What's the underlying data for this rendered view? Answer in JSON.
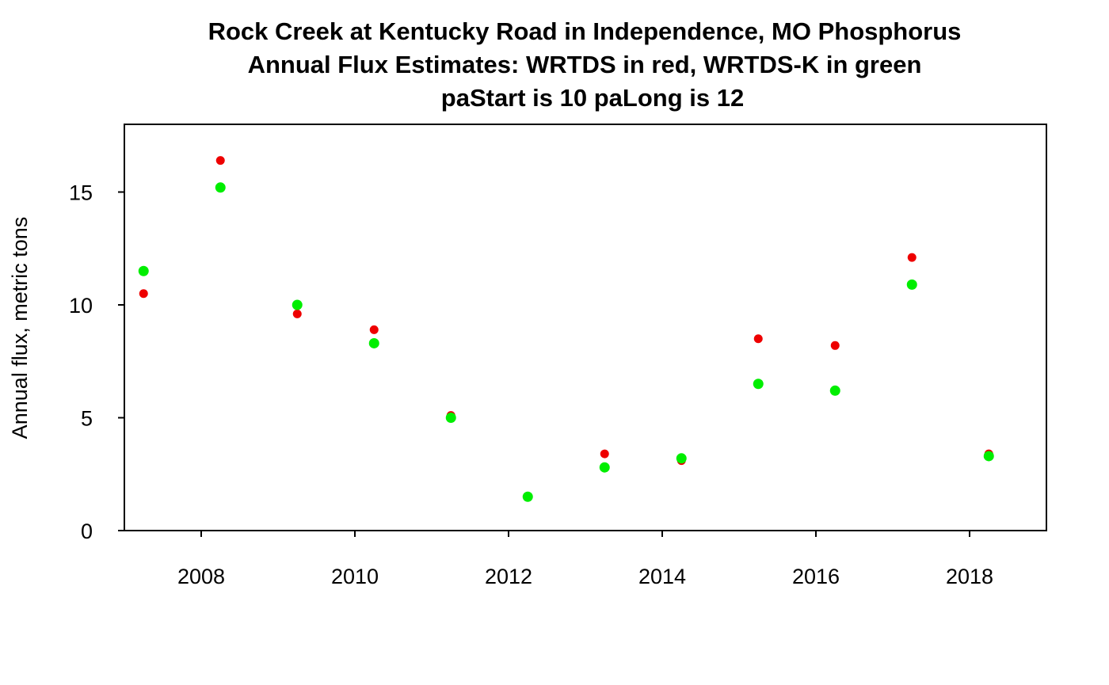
{
  "chart_data": {
    "type": "scatter",
    "title_lines": [
      "Rock Creek at Kentucky Road in Independence, MO  Phosphorus",
      "Annual Flux Estimates: WRTDS in red, WRTDS-K in green",
      "paStart is 10  paLong is 12"
    ],
    "xlabel": "",
    "ylabel": "Annual flux, metric tons",
    "xlim": [
      2007.0,
      2019.0
    ],
    "ylim": [
      0,
      18
    ],
    "x_ticks": [
      2008,
      2010,
      2012,
      2014,
      2016,
      2018
    ],
    "y_ticks": [
      0,
      5,
      10,
      15
    ],
    "grid": false,
    "series": [
      {
        "color": "#ee0000",
        "x": [
          2007.25,
          2008.25,
          2009.25,
          2010.25,
          2011.25,
          2012.25,
          2013.25,
          2014.25,
          2015.25,
          2016.25,
          2017.25,
          2018.25
        ],
        "y": [
          10.5,
          16.4,
          9.6,
          8.9,
          5.1,
          1.5,
          3.4,
          3.1,
          8.5,
          8.2,
          12.1,
          3.4
        ]
      },
      {
        "color": "#00ee00",
        "x": [
          2007.25,
          2008.25,
          2009.25,
          2010.25,
          2011.25,
          2012.25,
          2013.25,
          2014.25,
          2015.25,
          2016.25,
          2017.25,
          2018.25
        ],
        "y": [
          11.5,
          15.2,
          10.0,
          8.3,
          5.0,
          1.5,
          2.8,
          3.2,
          6.5,
          6.2,
          10.9,
          3.3
        ]
      }
    ]
  }
}
